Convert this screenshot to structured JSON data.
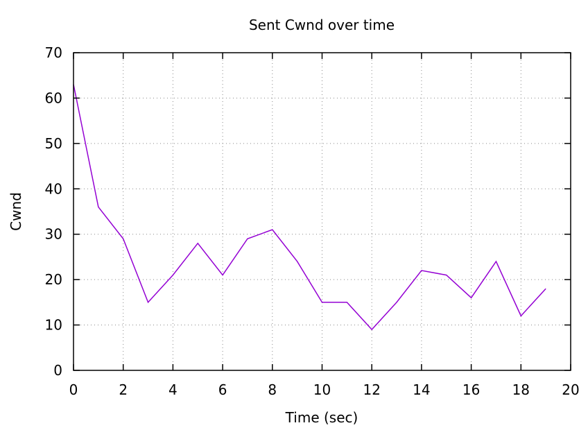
{
  "chart_data": {
    "type": "line",
    "title": "Sent Cwnd over time",
    "xlabel": "Time (sec)",
    "ylabel": "Cwnd",
    "xlim": [
      0,
      20
    ],
    "ylim": [
      0,
      70
    ],
    "xticks": [
      0,
      2,
      4,
      6,
      8,
      10,
      12,
      14,
      16,
      18,
      20
    ],
    "yticks": [
      0,
      10,
      20,
      30,
      40,
      50,
      60,
      70
    ],
    "grid": true,
    "legend": "none",
    "series": [
      {
        "color": "#9400d3",
        "x": [
          0,
          1,
          2,
          3,
          4,
          5,
          6,
          7,
          8,
          9,
          10,
          11,
          12,
          13,
          14,
          15,
          16,
          17,
          18,
          19
        ],
        "y": [
          63,
          36,
          29,
          15,
          21,
          28,
          21,
          29,
          31,
          24,
          15,
          15,
          9,
          15,
          22,
          21,
          16,
          24,
          12,
          18
        ]
      }
    ]
  }
}
